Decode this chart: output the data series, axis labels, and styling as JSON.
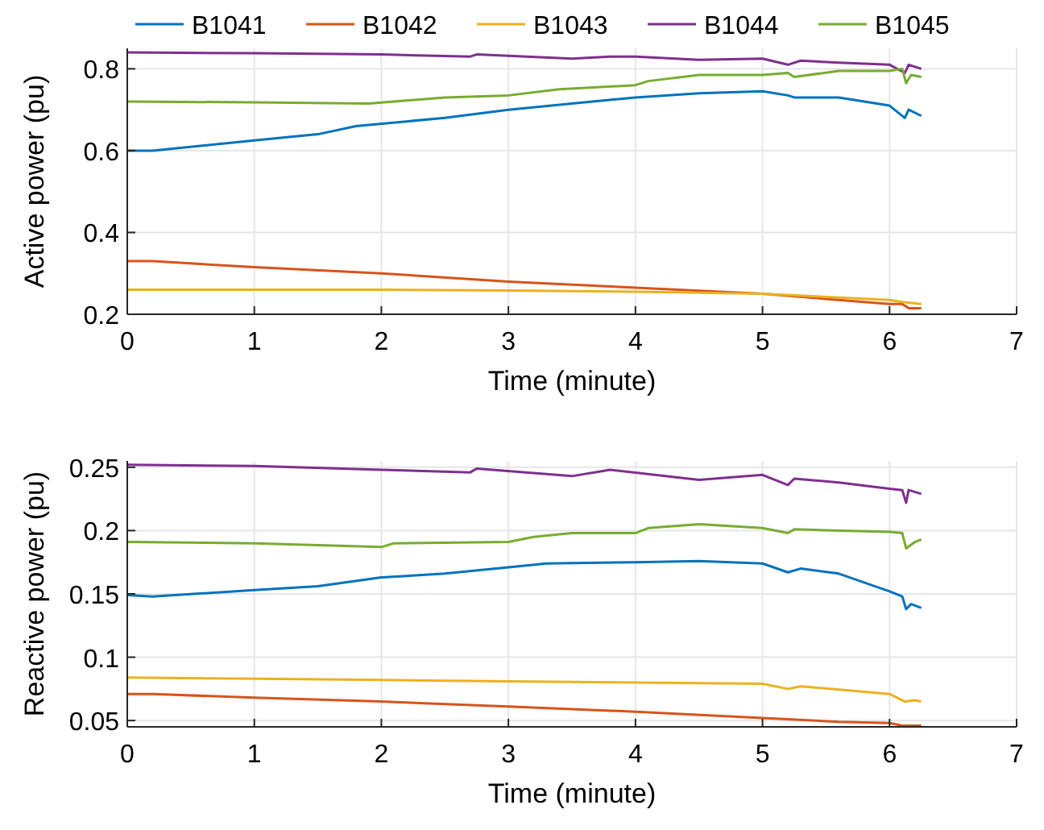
{
  "chart_data": [
    {
      "type": "line",
      "xlabel": "Time (minute)",
      "ylabel": "Active power (pu)",
      "xlim": [
        0,
        7
      ],
      "xticks": [
        0,
        1,
        2,
        3,
        4,
        5,
        6,
        7
      ],
      "ylim": [
        0.2,
        0.85
      ],
      "yticks": [
        0.2,
        0.4,
        0.6,
        0.8
      ],
      "grid": true,
      "legend": "top",
      "line_style": "solid",
      "series": [
        {
          "name": "B1041",
          "color": "#0072bd",
          "x": [
            0,
            0.2,
            1,
            1.5,
            1.8,
            2.5,
            3,
            3.5,
            4,
            4.5,
            5,
            5.2,
            5.25,
            5.6,
            6,
            6.12,
            6.15,
            6.25
          ],
          "values": [
            0.6,
            0.6,
            0.625,
            0.64,
            0.66,
            0.68,
            0.7,
            0.715,
            0.73,
            0.74,
            0.745,
            0.735,
            0.73,
            0.73,
            0.71,
            0.68,
            0.7,
            0.685
          ]
        },
        {
          "name": "B1042",
          "color": "#d95319",
          "x": [
            0,
            0.2,
            1,
            2,
            3,
            4,
            5,
            6,
            6.1,
            6.15,
            6.25
          ],
          "values": [
            0.33,
            0.33,
            0.315,
            0.3,
            0.28,
            0.265,
            0.25,
            0.225,
            0.225,
            0.215,
            0.215
          ]
        },
        {
          "name": "B1043",
          "color": "#edb120",
          "x": [
            0,
            2,
            3,
            4,
            5,
            6,
            6.1,
            6.25
          ],
          "values": [
            0.26,
            0.26,
            0.258,
            0.255,
            0.25,
            0.235,
            0.23,
            0.225
          ]
        },
        {
          "name": "B1044",
          "color": "#7e2f8e",
          "x": [
            0,
            1,
            2,
            2.7,
            2.75,
            3.5,
            3.8,
            4,
            4.5,
            5,
            5.2,
            5.3,
            5.6,
            6,
            6.12,
            6.15,
            6.25
          ],
          "values": [
            0.84,
            0.838,
            0.835,
            0.83,
            0.835,
            0.825,
            0.83,
            0.83,
            0.822,
            0.825,
            0.81,
            0.82,
            0.815,
            0.81,
            0.79,
            0.81,
            0.8
          ]
        },
        {
          "name": "B1045",
          "color": "#77ac30",
          "x": [
            0,
            1,
            1.9,
            2.1,
            2.5,
            3,
            3.4,
            4,
            4.1,
            4.5,
            5,
            5.2,
            5.25,
            5.6,
            6,
            6.1,
            6.13,
            6.17,
            6.25
          ],
          "values": [
            0.72,
            0.718,
            0.715,
            0.72,
            0.73,
            0.735,
            0.75,
            0.76,
            0.77,
            0.785,
            0.785,
            0.79,
            0.78,
            0.795,
            0.795,
            0.8,
            0.765,
            0.785,
            0.78
          ]
        }
      ]
    },
    {
      "type": "line",
      "xlabel": "Time (minute)",
      "ylabel": "Reactive power (pu)",
      "xlim": [
        0,
        7
      ],
      "xticks": [
        0,
        1,
        2,
        3,
        4,
        5,
        6,
        7
      ],
      "ylim": [
        0.045,
        0.255
      ],
      "yticks": [
        0.05,
        0.1,
        0.15,
        0.2,
        0.25
      ],
      "grid": true,
      "line_style": "solid",
      "series": [
        {
          "color": "#0072bd",
          "x": [
            0,
            0.2,
            1,
            1.5,
            2,
            2.5,
            3,
            3.3,
            4,
            4.5,
            5,
            5.2,
            5.3,
            5.6,
            6,
            6.1,
            6.13,
            6.17,
            6.25
          ],
          "values": [
            0.149,
            0.148,
            0.153,
            0.156,
            0.163,
            0.166,
            0.171,
            0.174,
            0.175,
            0.176,
            0.174,
            0.167,
            0.17,
            0.166,
            0.152,
            0.148,
            0.138,
            0.142,
            0.139
          ]
        },
        {
          "color": "#d95319",
          "x": [
            0,
            0.2,
            1,
            2,
            3,
            4,
            5,
            5.6,
            6,
            6.1,
            6.25
          ],
          "values": [
            0.071,
            0.071,
            0.068,
            0.065,
            0.061,
            0.057,
            0.052,
            0.049,
            0.048,
            0.046,
            0.046
          ]
        },
        {
          "color": "#edb120",
          "x": [
            0,
            1,
            2,
            3,
            4,
            5,
            5.2,
            5.3,
            6,
            6.12,
            6.2,
            6.25
          ],
          "values": [
            0.084,
            0.083,
            0.082,
            0.081,
            0.08,
            0.079,
            0.075,
            0.077,
            0.071,
            0.065,
            0.066,
            0.065
          ]
        },
        {
          "color": "#7e2f8e",
          "x": [
            0,
            1,
            2,
            2.7,
            2.75,
            3.5,
            3.8,
            4.5,
            5,
            5.2,
            5.25,
            5.6,
            6,
            6.1,
            6.13,
            6.15,
            6.25
          ],
          "values": [
            0.252,
            0.251,
            0.248,
            0.246,
            0.249,
            0.243,
            0.248,
            0.24,
            0.244,
            0.236,
            0.241,
            0.238,
            0.233,
            0.232,
            0.222,
            0.232,
            0.229
          ]
        },
        {
          "color": "#77ac30",
          "x": [
            0,
            1,
            2,
            2.1,
            3,
            3.2,
            3.5,
            4,
            4.1,
            4.5,
            5,
            5.2,
            5.25,
            5.6,
            6,
            6.1,
            6.13,
            6.2,
            6.25
          ],
          "values": [
            0.191,
            0.19,
            0.187,
            0.19,
            0.191,
            0.195,
            0.198,
            0.198,
            0.202,
            0.205,
            0.202,
            0.198,
            0.201,
            0.2,
            0.199,
            0.198,
            0.186,
            0.191,
            0.193
          ]
        }
      ]
    }
  ]
}
